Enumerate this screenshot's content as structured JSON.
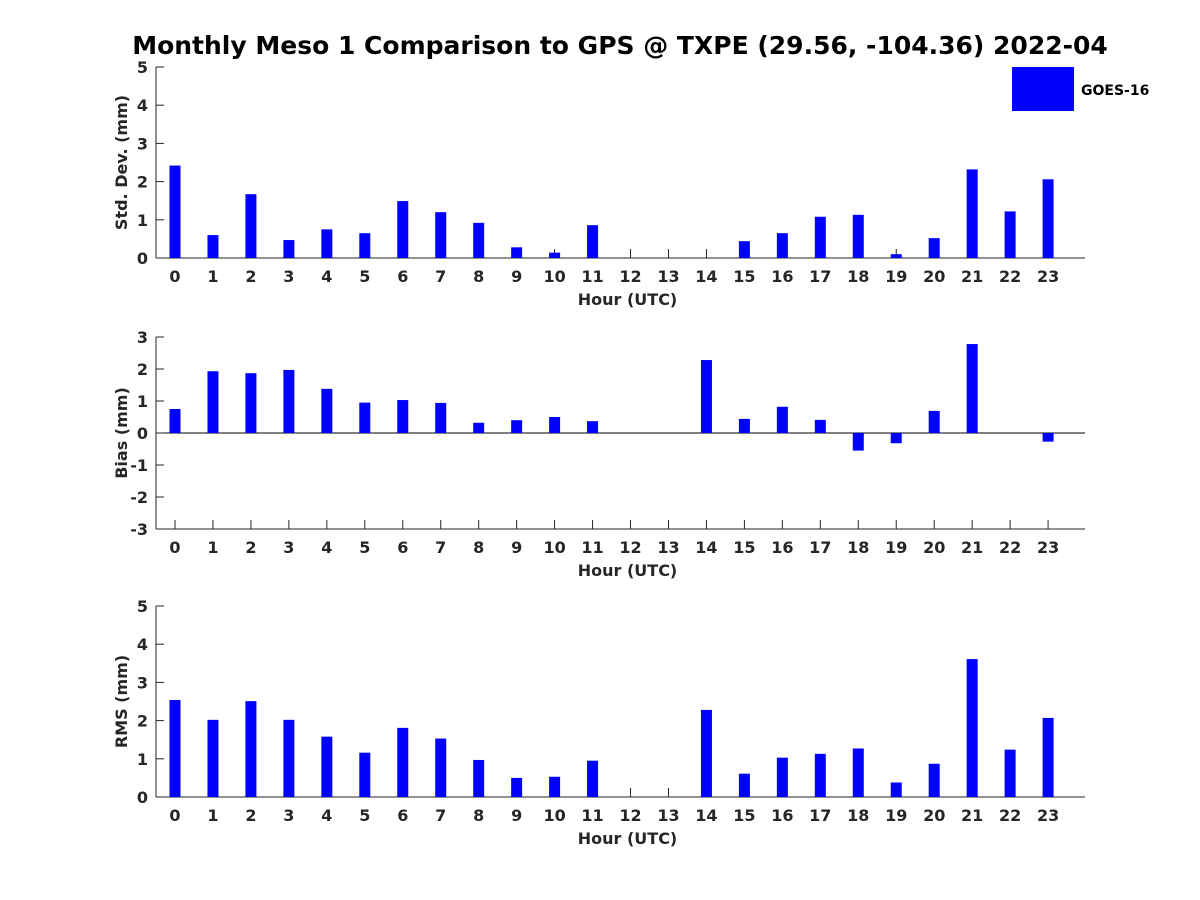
{
  "figure": {
    "title": "Monthly Meso 1 Comparison to GPS @ TXPE (29.56, -104.36) 2022-04",
    "legend_label": "GOES-16",
    "bar_color": "#0000ff",
    "axis_color": "#262626"
  },
  "chart_data": [
    {
      "type": "bar",
      "ylabel": "Std. Dev. (mm)",
      "xlabel": "Hour (UTC)",
      "ylim": [
        0,
        5
      ],
      "yticks": [
        0,
        1,
        2,
        3,
        4,
        5
      ],
      "categories": [
        0,
        1,
        2,
        3,
        4,
        5,
        6,
        7,
        8,
        9,
        10,
        11,
        12,
        13,
        14,
        15,
        16,
        17,
        18,
        19,
        20,
        21,
        22,
        23
      ],
      "series": [
        {
          "name": "GOES-16",
          "values": [
            2.42,
            0.6,
            1.67,
            0.47,
            0.75,
            0.65,
            1.49,
            1.2,
            0.92,
            0.28,
            0.14,
            0.86,
            null,
            null,
            null,
            0.44,
            0.65,
            1.08,
            1.13,
            0.1,
            0.52,
            2.32,
            1.22,
            2.06
          ]
        }
      ],
      "legend": "top-right"
    },
    {
      "type": "bar",
      "ylabel": "Bias (mm)",
      "xlabel": "Hour (UTC)",
      "ylim": [
        -3,
        3
      ],
      "yticks": [
        -3,
        -2,
        -1,
        0,
        1,
        2,
        3
      ],
      "categories": [
        0,
        1,
        2,
        3,
        4,
        5,
        6,
        7,
        8,
        9,
        10,
        11,
        12,
        13,
        14,
        15,
        16,
        17,
        18,
        19,
        20,
        21,
        22,
        23
      ],
      "series": [
        {
          "name": "GOES-16",
          "values": [
            0.75,
            1.93,
            1.87,
            1.97,
            1.38,
            0.95,
            1.03,
            0.94,
            0.32,
            0.4,
            0.5,
            0.37,
            null,
            null,
            2.28,
            0.44,
            0.82,
            0.41,
            -0.55,
            -0.32,
            0.69,
            2.78,
            null,
            -0.27
          ]
        }
      ]
    },
    {
      "type": "bar",
      "ylabel": "RMS (mm)",
      "xlabel": "Hour (UTC)",
      "ylim": [
        0,
        5
      ],
      "yticks": [
        0,
        1,
        2,
        3,
        4,
        5
      ],
      "categories": [
        0,
        1,
        2,
        3,
        4,
        5,
        6,
        7,
        8,
        9,
        10,
        11,
        12,
        13,
        14,
        15,
        16,
        17,
        18,
        19,
        20,
        21,
        22,
        23
      ],
      "series": [
        {
          "name": "GOES-16",
          "values": [
            2.54,
            2.02,
            2.51,
            2.02,
            1.58,
            1.16,
            1.81,
            1.53,
            0.97,
            0.5,
            0.53,
            0.95,
            null,
            null,
            2.28,
            0.61,
            1.03,
            1.13,
            1.27,
            0.38,
            0.87,
            3.61,
            1.24,
            2.07
          ]
        }
      ]
    }
  ]
}
